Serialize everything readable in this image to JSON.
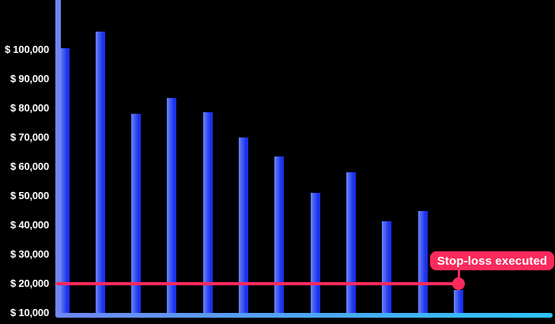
{
  "chart_data": {
    "type": "bar",
    "title": "",
    "xlabel": "",
    "ylabel": "",
    "grid": false,
    "legend": false,
    "ylim": [
      10000,
      118000
    ],
    "y_ticks": [
      {
        "label": "$ 100,000",
        "value": 100000
      },
      {
        "label": "$ 90,000",
        "value": 90000
      },
      {
        "label": "$ 80,000",
        "value": 80000
      },
      {
        "label": "$ 70,000",
        "value": 70000
      },
      {
        "label": "$ 60,000",
        "value": 60000
      },
      {
        "label": "$ 50,000",
        "value": 50000
      },
      {
        "label": "$ 40,000",
        "value": 40000
      },
      {
        "label": "$ 30,000",
        "value": 30000
      },
      {
        "label": "$ 20,000",
        "value": 20000
      },
      {
        "label": "$ 10,000",
        "value": 10000
      }
    ],
    "values": [
      100300,
      106000,
      78000,
      83400,
      78500,
      70000,
      63500,
      51000,
      58000,
      41500,
      44800,
      18000
    ],
    "annotations": {
      "stop_loss": {
        "label": "Stop-loss executed",
        "value": 20000,
        "marker_at_bar_index": 11
      }
    }
  },
  "colors": {
    "background": "#000000",
    "bar_gradient_left": "#6b84f6",
    "bar_gradient_right": "#1b31ee",
    "y_axis_line": "#6e87f3",
    "x_axis_gradient_left": "#6e87f3",
    "x_axis_gradient_right": "#2cc4f8",
    "stop_loss_red": "#fa2a5c",
    "tick_label_text": "#ffffff",
    "badge_text": "#ffffff"
  }
}
